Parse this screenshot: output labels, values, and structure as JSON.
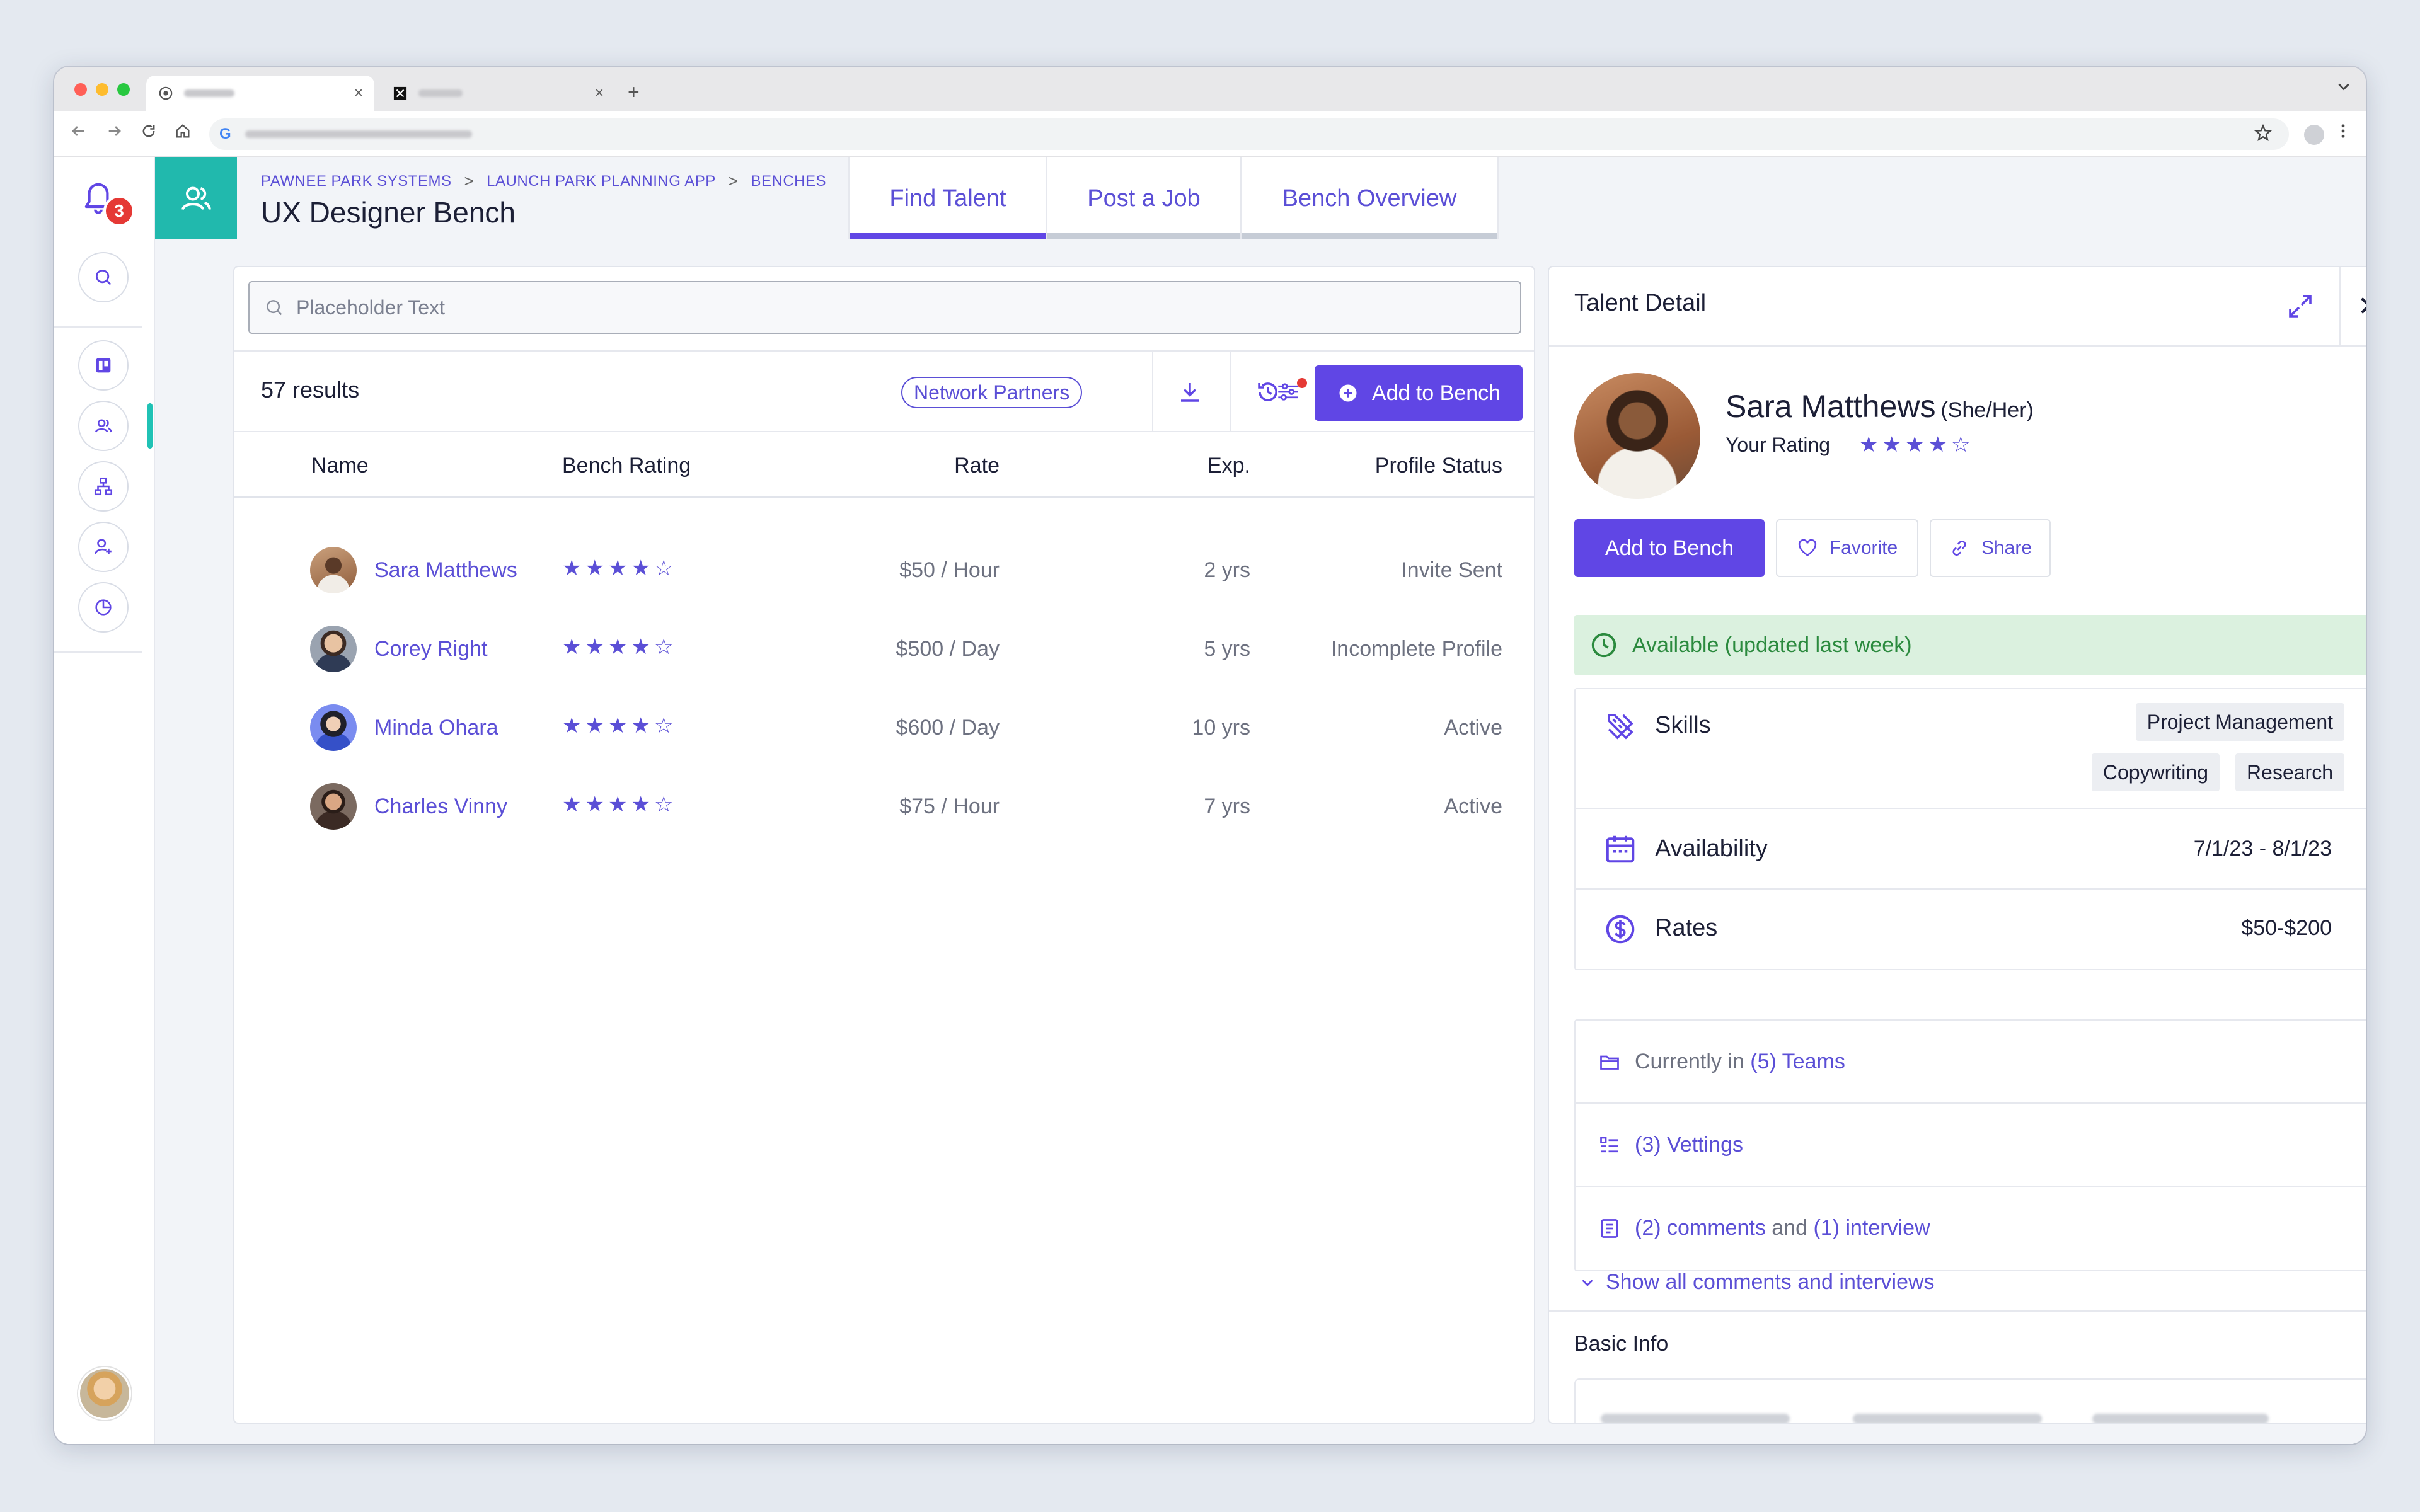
{
  "browser": {
    "tab_close_glyph": "×",
    "new_tab_glyph": "+",
    "colors": {
      "red": "#ff5f57",
      "yellow": "#febc2e",
      "green": "#28c840"
    }
  },
  "rail": {
    "notification_count": "3",
    "items": [
      "search-icon",
      "board-icon",
      "users-icon",
      "hierarchy-icon",
      "add-user-icon",
      "pie-chart-icon"
    ]
  },
  "header": {
    "breadcrumbs": [
      "PAWNEE PARK SYSTEMS",
      "LAUNCH PARK PLANNING APP",
      "BENCHES"
    ],
    "breadcrumb_sep": ">",
    "title": "UX Designer Bench",
    "tabs": [
      "Find Talent",
      "Post a Job",
      "Bench Overview"
    ],
    "active_tab": "Find Talent"
  },
  "list": {
    "search_placeholder": "Placeholder Text",
    "results_count": "57 results",
    "filter_pill": "Network Partners",
    "add_button": "Add to Bench",
    "columns": [
      "Name",
      "Bench Rating",
      "Rate",
      "Exp.",
      "Profile Status"
    ],
    "rows": [
      {
        "name": "Sara Matthews",
        "rating": 4,
        "rate": "$50 / Hour",
        "exp": "2 yrs",
        "status": "Invite Sent"
      },
      {
        "name": "Corey Right",
        "rating": 4,
        "rate": "$500 / Day",
        "exp": "5 yrs",
        "status": "Incomplete Profile"
      },
      {
        "name": "Minda Ohara",
        "rating": 4,
        "rate": "$600 / Day",
        "exp": "10 yrs",
        "status": "Active"
      },
      {
        "name": "Charles Vinny",
        "rating": 4,
        "rate": "$75 / Hour",
        "exp": "7 yrs",
        "status": "Active"
      }
    ]
  },
  "detail": {
    "title": "Talent Detail",
    "close_glyph": "✕",
    "name": "Sara Matthews",
    "pronouns": "(She/Her)",
    "your_rating_label": "Your Rating",
    "your_rating": 4,
    "buttons": {
      "add": "Add to Bench",
      "favorite": "Favorite",
      "share": "Share"
    },
    "availability_banner": "Available (updated last week)",
    "skills_label": "Skills",
    "skills": [
      "Project Management",
      "Copywriting",
      "Research"
    ],
    "availability_label": "Availability",
    "availability_value": "7/1/23 - 8/1/23",
    "rates_label": "Rates",
    "rates_value": "$50-$200",
    "teams": {
      "prefix": "Currently in",
      "link": "(5) Teams"
    },
    "vettings": "(3) Vettings",
    "comments": {
      "comments": "(2) comments",
      "and": "and",
      "interviews": "(1) interview"
    },
    "show_all": "Show all comments and interviews",
    "basic_info": "Basic Info"
  },
  "accent": "#6046e5",
  "teal": "#21b9ad"
}
